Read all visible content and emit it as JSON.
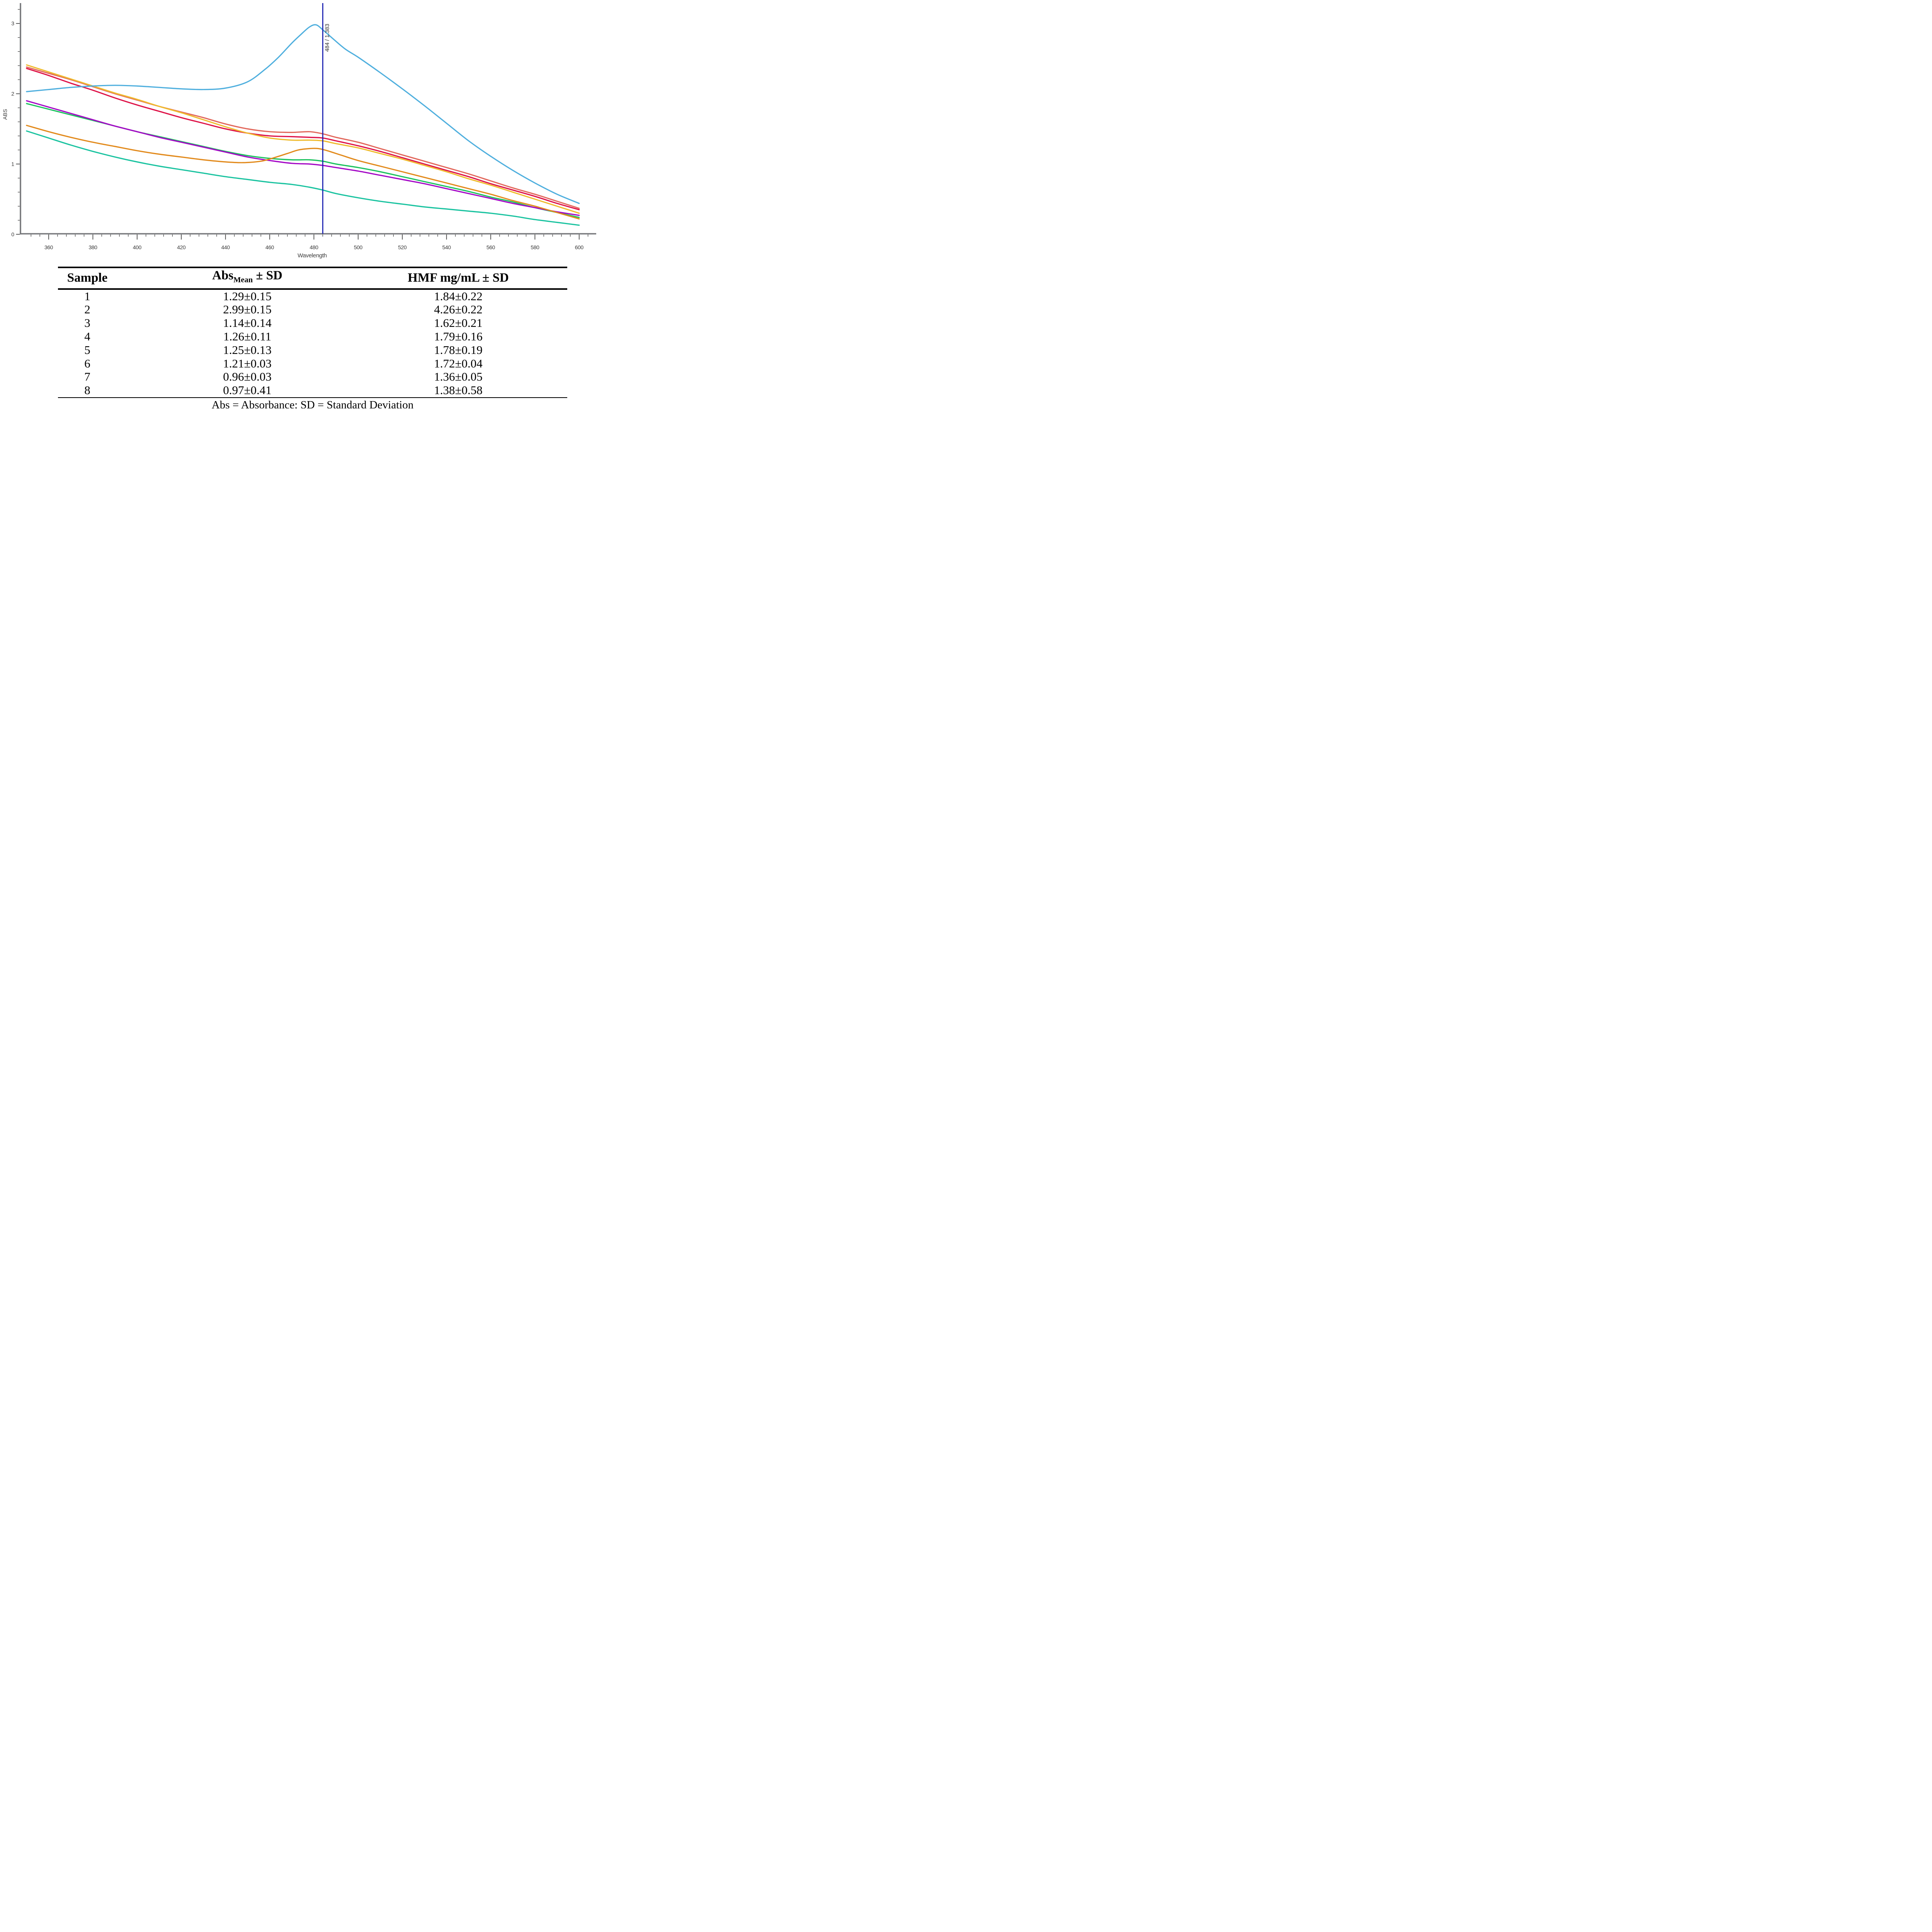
{
  "chart_data": {
    "type": "line",
    "xlabel": "Wavelength",
    "ylabel": "ABS",
    "xlim": [
      347.2,
      607.7
    ],
    "ylim": [
      0,
      3.29
    ],
    "x_major_ticks": [
      360,
      380,
      400,
      420,
      440,
      460,
      480,
      500,
      520,
      540,
      560,
      580,
      600
    ],
    "x_minor_step": 4,
    "x_minor_range": [
      352,
      604
    ],
    "y_major_ticks": [
      0,
      1,
      2,
      3
    ],
    "y_minor_step": 0.2,
    "y_minor_max": 3.2,
    "grid": "off",
    "legend": "none",
    "cursor": {
      "x": 484,
      "label": "484 / 1.383",
      "color": "#191FB0"
    },
    "axis_color": "#77787B",
    "tick_color": "#2F2F2F",
    "tick_label_color": "#3B3B3B",
    "series": [
      {
        "name": "teal",
        "color": "#1AC3A0",
        "x": [
          350,
          360,
          370,
          380,
          390,
          400,
          410,
          420,
          430,
          440,
          450,
          460,
          470,
          478,
          484,
          490,
          500,
          510,
          520,
          530,
          540,
          550,
          560,
          570,
          580,
          590,
          600
        ],
        "y": [
          1.47,
          1.37,
          1.27,
          1.18,
          1.1,
          1.03,
          0.97,
          0.92,
          0.87,
          0.82,
          0.78,
          0.74,
          0.71,
          0.67,
          0.63,
          0.58,
          0.52,
          0.47,
          0.43,
          0.39,
          0.36,
          0.33,
          0.3,
          0.26,
          0.21,
          0.17,
          0.13
        ]
      },
      {
        "name": "green",
        "color": "#1CC25E",
        "x": [
          350,
          360,
          370,
          380,
          390,
          400,
          410,
          420,
          430,
          440,
          450,
          460,
          470,
          478,
          484,
          490,
          500,
          510,
          520,
          530,
          540,
          550,
          560,
          570,
          580,
          590,
          600
        ],
        "y": [
          1.86,
          1.78,
          1.7,
          1.62,
          1.54,
          1.46,
          1.39,
          1.32,
          1.25,
          1.18,
          1.12,
          1.08,
          1.06,
          1.06,
          1.04,
          1.0,
          0.95,
          0.89,
          0.82,
          0.75,
          0.68,
          0.61,
          0.53,
          0.46,
          0.38,
          0.31,
          0.24
        ]
      },
      {
        "name": "purple",
        "color": "#A408C6",
        "x": [
          350,
          360,
          370,
          380,
          390,
          400,
          410,
          420,
          430,
          440,
          450,
          460,
          470,
          478,
          484,
          490,
          500,
          510,
          520,
          530,
          540,
          550,
          560,
          570,
          580,
          590,
          600
        ],
        "y": [
          1.9,
          1.81,
          1.72,
          1.63,
          1.54,
          1.46,
          1.38,
          1.31,
          1.24,
          1.17,
          1.1,
          1.05,
          1.01,
          1.0,
          0.98,
          0.95,
          0.9,
          0.84,
          0.78,
          0.72,
          0.65,
          0.58,
          0.51,
          0.44,
          0.38,
          0.32,
          0.27
        ]
      },
      {
        "name": "orange",
        "color": "#E28A1C",
        "x": [
          350,
          360,
          370,
          380,
          390,
          400,
          410,
          420,
          430,
          440,
          448,
          456,
          462,
          468,
          473,
          478,
          482,
          486,
          492,
          500,
          510,
          520,
          530,
          540,
          550,
          560,
          570,
          580,
          590,
          600
        ],
        "y": [
          1.55,
          1.46,
          1.38,
          1.31,
          1.25,
          1.19,
          1.14,
          1.1,
          1.06,
          1.03,
          1.02,
          1.04,
          1.09,
          1.15,
          1.2,
          1.22,
          1.22,
          1.19,
          1.13,
          1.05,
          0.97,
          0.89,
          0.81,
          0.73,
          0.65,
          0.57,
          0.48,
          0.4,
          0.31,
          0.22
        ]
      },
      {
        "name": "salmon-red",
        "color": "#E2685C",
        "x": [
          350,
          360,
          370,
          380,
          390,
          400,
          410,
          420,
          430,
          440,
          450,
          460,
          470,
          478,
          484,
          490,
          500,
          510,
          520,
          530,
          540,
          550,
          560,
          570,
          580,
          590,
          600
        ],
        "y": [
          2.38,
          2.29,
          2.2,
          2.1,
          2.0,
          1.91,
          1.82,
          1.74,
          1.66,
          1.57,
          1.5,
          1.46,
          1.45,
          1.46,
          1.43,
          1.38,
          1.31,
          1.22,
          1.13,
          1.04,
          0.95,
          0.86,
          0.76,
          0.66,
          0.57,
          0.47,
          0.37
        ]
      },
      {
        "name": "crimson",
        "color": "#DE1348",
        "x": [
          350,
          360,
          370,
          380,
          390,
          400,
          410,
          420,
          430,
          440,
          450,
          460,
          470,
          478,
          484,
          490,
          500,
          510,
          520,
          530,
          540,
          550,
          560,
          570,
          580,
          590,
          600
        ],
        "y": [
          2.36,
          2.26,
          2.15,
          2.05,
          1.94,
          1.84,
          1.75,
          1.66,
          1.58,
          1.5,
          1.44,
          1.4,
          1.39,
          1.38,
          1.37,
          1.33,
          1.26,
          1.18,
          1.09,
          1.0,
          0.91,
          0.82,
          0.72,
          0.63,
          0.54,
          0.44,
          0.35
        ]
      },
      {
        "name": "gold",
        "color": "#EFBA2C",
        "x": [
          350,
          360,
          370,
          380,
          390,
          400,
          410,
          420,
          430,
          440,
          450,
          460,
          470,
          478,
          484,
          490,
          500,
          510,
          520,
          530,
          540,
          550,
          560,
          570,
          580,
          590,
          600
        ],
        "y": [
          2.41,
          2.31,
          2.21,
          2.11,
          2.01,
          1.92,
          1.82,
          1.73,
          1.63,
          1.53,
          1.44,
          1.37,
          1.34,
          1.34,
          1.33,
          1.29,
          1.23,
          1.15,
          1.07,
          0.98,
          0.89,
          0.79,
          0.7,
          0.6,
          0.5,
          0.4,
          0.3
        ]
      },
      {
        "name": "sky-blue",
        "color": "#4FAFDE",
        "x": [
          350,
          360,
          370,
          380,
          390,
          400,
          410,
          420,
          430,
          440,
          450,
          458,
          464,
          470,
          474,
          478,
          481,
          484,
          488,
          494,
          500,
          510,
          520,
          530,
          540,
          550,
          560,
          570,
          580,
          590,
          600
        ],
        "y": [
          2.03,
          2.06,
          2.09,
          2.11,
          2.12,
          2.11,
          2.09,
          2.07,
          2.06,
          2.08,
          2.17,
          2.35,
          2.52,
          2.72,
          2.84,
          2.95,
          2.98,
          2.91,
          2.8,
          2.64,
          2.52,
          2.3,
          2.07,
          1.83,
          1.58,
          1.33,
          1.11,
          0.91,
          0.73,
          0.57,
          0.44
        ]
      }
    ]
  },
  "table": {
    "headers": {
      "sample": "Sample",
      "abs_base": "Abs",
      "abs_sub": "Mean",
      "abs_suffix": " ± SD",
      "hmf": "HMF mg/mL ± SD"
    },
    "rows": [
      {
        "sample": "1",
        "abs": "1.29±0.15",
        "hmf": "1.84±0.22"
      },
      {
        "sample": "2",
        "abs": "2.99±0.15",
        "hmf": "4.26±0.22"
      },
      {
        "sample": "3",
        "abs": "1.14±0.14",
        "hmf": "1.62±0.21"
      },
      {
        "sample": "4",
        "abs": "1.26±0.11",
        "hmf": "1.79±0.16"
      },
      {
        "sample": "5",
        "abs": "1.25±0.13",
        "hmf": "1.78±0.19"
      },
      {
        "sample": "6",
        "abs": "1.21±0.03",
        "hmf": "1.72±0.04"
      },
      {
        "sample": "7",
        "abs": "0.96±0.03",
        "hmf": "1.36±0.05"
      },
      {
        "sample": "8",
        "abs": "0.97±0.41",
        "hmf": "1.38±0.58"
      }
    ],
    "footnote": "Abs = Absorbance; SD = Standard Deviation"
  }
}
